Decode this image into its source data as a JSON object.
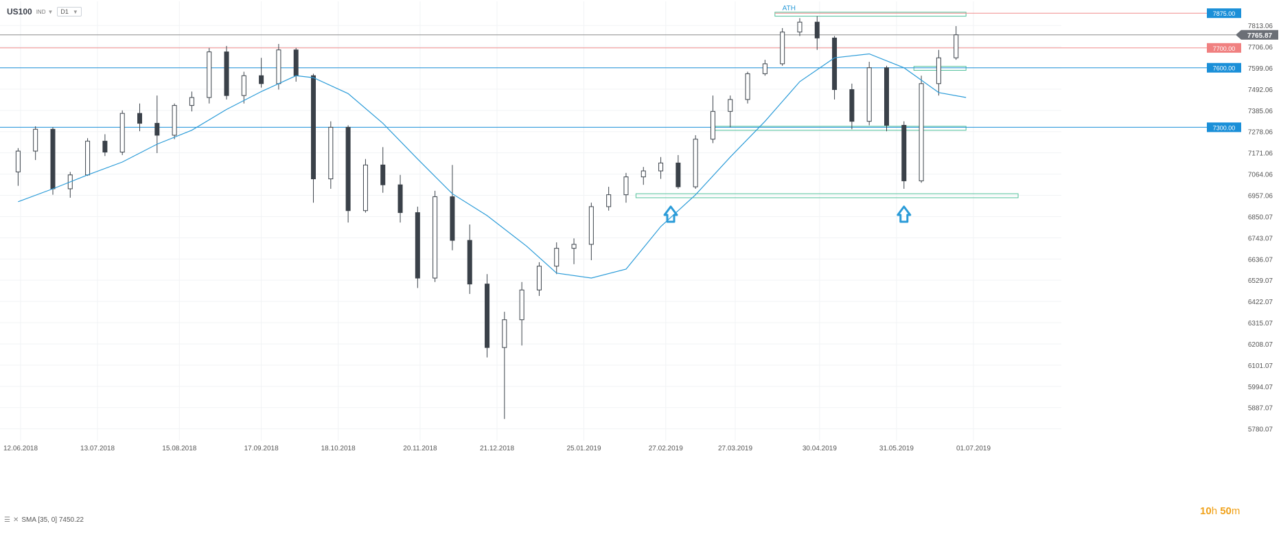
{
  "toolbar": {
    "symbol": "US100",
    "type_label": "IND",
    "timeframe": "D1"
  },
  "indicator_legend": {
    "text": "SMA [35, 0] 7450.22"
  },
  "countdown": {
    "hours": "10",
    "hours_unit": "h",
    "minutes": "50",
    "minutes_unit": "m"
  },
  "colors": {
    "candle_down": "#3a4149",
    "candle_up_fill": "#ffffff",
    "candle_outline": "#3a4149",
    "sma": "#2a9bd8",
    "support_line": "#1a8fd8",
    "resistance_line": "#f08a8a",
    "price_line": "#8c8c8c",
    "zone": "#4fbf99",
    "badge_blue": "#1a8fd8",
    "badge_red": "#f08080",
    "badge_gray": "#6b6f76",
    "arrow": "#2a9bd8",
    "ath": "#2a9bd8"
  },
  "chart_data": {
    "type": "candlestick",
    "symbol": "US100",
    "timeframe": "D1",
    "ylim": [
      5720,
      7900
    ],
    "y_ticks": [
      7813.06,
      7706.06,
      7599.06,
      7492.06,
      7385.06,
      7278.06,
      7171.06,
      7064.06,
      6957.06,
      6850.07,
      6743.07,
      6636.07,
      6529.07,
      6422.07,
      6315.07,
      6208.07,
      6101.07,
      5994.07,
      5887.07,
      5780.07
    ],
    "x_ticks": [
      "12.06.2018",
      "13.07.2018",
      "15.08.2018",
      "17.09.2018",
      "18.10.2018",
      "20.11.2018",
      "21.12.2018",
      "25.01.2019",
      "27.02.2019",
      "27.03.2019",
      "30.04.2019",
      "31.05.2019",
      "01.07.2019"
    ],
    "grid": true,
    "current_price": "7765.87",
    "horizontal_levels": [
      {
        "value": 7875.0,
        "label": "7875.00",
        "kind": "resistance-top"
      },
      {
        "value": 7700.0,
        "label": "7700.00",
        "kind": "resistance"
      },
      {
        "value": 7600.0,
        "label": "7600.00",
        "kind": "support"
      },
      {
        "value": 7300.0,
        "label": "7300.00",
        "kind": "support"
      }
    ],
    "zones": [
      {
        "from_date": "2019-04-12",
        "to_date": "2019-06-28",
        "y_low": 7860,
        "y_high": 7880
      },
      {
        "from_date": "2019-06-07",
        "to_date": "2019-06-28",
        "y_low": 7587,
        "y_high": 7607
      },
      {
        "from_date": "2019-03-18",
        "to_date": "2019-06-28",
        "y_low": 7285,
        "y_high": 7305
      },
      {
        "from_date": "2019-02-15",
        "to_date": "2019-07-19",
        "y_low": 6945,
        "y_high": 6965
      }
    ],
    "annotations": [
      {
        "text": "ATH",
        "date": "2019-04-15",
        "value": 7890
      }
    ],
    "arrows": [
      {
        "date": "2019-03-01",
        "value": 6900
      },
      {
        "date": "2019-06-03",
        "value": 6900
      }
    ],
    "sma_period": 35,
    "sma_value": "7450.22",
    "sma": [
      [
        "2018-06-11",
        6925
      ],
      [
        "2018-06-25",
        6990
      ],
      [
        "2018-07-09",
        7060
      ],
      [
        "2018-07-23",
        7125
      ],
      [
        "2018-08-06",
        7215
      ],
      [
        "2018-08-20",
        7285
      ],
      [
        "2018-09-03",
        7390
      ],
      [
        "2018-09-17",
        7480
      ],
      [
        "2018-10-01",
        7560
      ],
      [
        "2018-10-08",
        7550
      ],
      [
        "2018-10-22",
        7470
      ],
      [
        "2018-11-05",
        7320
      ],
      [
        "2018-11-19",
        7140
      ],
      [
        "2018-12-03",
        6965
      ],
      [
        "2018-12-17",
        6855
      ],
      [
        "2019-01-02",
        6700
      ],
      [
        "2019-01-14",
        6565
      ],
      [
        "2019-01-28",
        6540
      ],
      [
        "2019-02-11",
        6585
      ],
      [
        "2019-02-25",
        6800
      ],
      [
        "2019-03-11",
        6960
      ],
      [
        "2019-03-25",
        7150
      ],
      [
        "2019-04-08",
        7330
      ],
      [
        "2019-04-22",
        7530
      ],
      [
        "2019-05-06",
        7650
      ],
      [
        "2019-05-20",
        7670
      ],
      [
        "2019-06-03",
        7600
      ],
      [
        "2019-06-17",
        7475
      ],
      [
        "2019-06-28",
        7450
      ]
    ],
    "ohlc": [
      [
        "2018-06-11",
        7075,
        7195,
        7005,
        7180
      ],
      [
        "2018-06-18",
        7180,
        7305,
        7135,
        7290
      ],
      [
        "2018-06-25",
        7290,
        7300,
        6960,
        6990
      ],
      [
        "2018-07-02",
        6990,
        7075,
        6945,
        7060
      ],
      [
        "2018-07-09",
        7060,
        7245,
        7055,
        7230
      ],
      [
        "2018-07-16",
        7230,
        7265,
        7155,
        7175
      ],
      [
        "2018-07-23",
        7175,
        7385,
        7160,
        7370
      ],
      [
        "2018-07-30",
        7370,
        7420,
        7280,
        7320
      ],
      [
        "2018-08-06",
        7320,
        7460,
        7170,
        7260
      ],
      [
        "2018-08-13",
        7260,
        7420,
        7240,
        7410
      ],
      [
        "2018-08-20",
        7410,
        7480,
        7380,
        7450
      ],
      [
        "2018-08-27",
        7450,
        7700,
        7420,
        7680
      ],
      [
        "2018-09-03",
        7680,
        7710,
        7440,
        7460
      ],
      [
        "2018-09-10",
        7460,
        7580,
        7420,
        7560
      ],
      [
        "2018-09-17",
        7560,
        7650,
        7500,
        7520
      ],
      [
        "2018-09-24",
        7520,
        7720,
        7490,
        7690
      ],
      [
        "2018-10-01",
        7690,
        7700,
        7530,
        7560
      ],
      [
        "2018-10-08",
        7560,
        7570,
        6920,
        7040
      ],
      [
        "2018-10-15",
        7040,
        7330,
        6990,
        7300
      ],
      [
        "2018-10-22",
        7300,
        7310,
        6820,
        6880
      ],
      [
        "2018-10-29",
        6880,
        7140,
        6870,
        7110
      ],
      [
        "2018-11-05",
        7110,
        7200,
        6970,
        7010
      ],
      [
        "2018-11-12",
        7010,
        7060,
        6820,
        6870
      ],
      [
        "2018-11-19",
        6870,
        6900,
        6490,
        6540
      ],
      [
        "2018-11-26",
        6540,
        6980,
        6520,
        6950
      ],
      [
        "2018-12-03",
        6950,
        7110,
        6680,
        6730
      ],
      [
        "2018-12-10",
        6730,
        6810,
        6460,
        6510
      ],
      [
        "2018-12-17",
        6510,
        6560,
        6140,
        6190
      ],
      [
        "2018-12-24",
        6190,
        6370,
        5830,
        6330
      ],
      [
        "2018-12-31",
        6330,
        6520,
        6200,
        6480
      ],
      [
        "2019-01-07",
        6480,
        6620,
        6450,
        6600
      ],
      [
        "2019-01-14",
        6600,
        6720,
        6560,
        6690
      ],
      [
        "2019-01-21",
        6690,
        6740,
        6610,
        6710
      ],
      [
        "2019-01-28",
        6710,
        6920,
        6630,
        6900
      ],
      [
        "2019-02-04",
        6900,
        7000,
        6880,
        6960
      ],
      [
        "2019-02-11",
        6960,
        7070,
        6920,
        7050
      ],
      [
        "2019-02-18",
        7050,
        7100,
        7010,
        7080
      ],
      [
        "2019-02-25",
        7080,
        7150,
        7040,
        7120
      ],
      [
        "2019-03-04",
        7120,
        7160,
        6990,
        7000
      ],
      [
        "2019-03-11",
        7000,
        7260,
        6990,
        7240
      ],
      [
        "2019-03-18",
        7240,
        7460,
        7220,
        7380
      ],
      [
        "2019-03-25",
        7380,
        7460,
        7300,
        7440
      ],
      [
        "2019-04-01",
        7440,
        7580,
        7420,
        7570
      ],
      [
        "2019-04-08",
        7570,
        7640,
        7560,
        7620
      ],
      [
        "2019-04-15",
        7620,
        7800,
        7610,
        7780
      ],
      [
        "2019-04-22",
        7780,
        7850,
        7760,
        7830
      ],
      [
        "2019-04-29",
        7830,
        7860,
        7690,
        7750
      ],
      [
        "2019-05-06",
        7750,
        7760,
        7440,
        7490
      ],
      [
        "2019-05-13",
        7490,
        7520,
        7290,
        7330
      ],
      [
        "2019-05-20",
        7330,
        7630,
        7310,
        7600
      ],
      [
        "2019-05-27",
        7600,
        7610,
        7280,
        7310
      ],
      [
        "2019-06-03",
        7310,
        7330,
        6990,
        7030
      ],
      [
        "2019-06-10",
        7030,
        7560,
        7020,
        7520
      ],
      [
        "2019-06-17",
        7520,
        7690,
        7460,
        7650
      ],
      [
        "2019-06-24",
        7650,
        7810,
        7640,
        7766
      ]
    ]
  }
}
